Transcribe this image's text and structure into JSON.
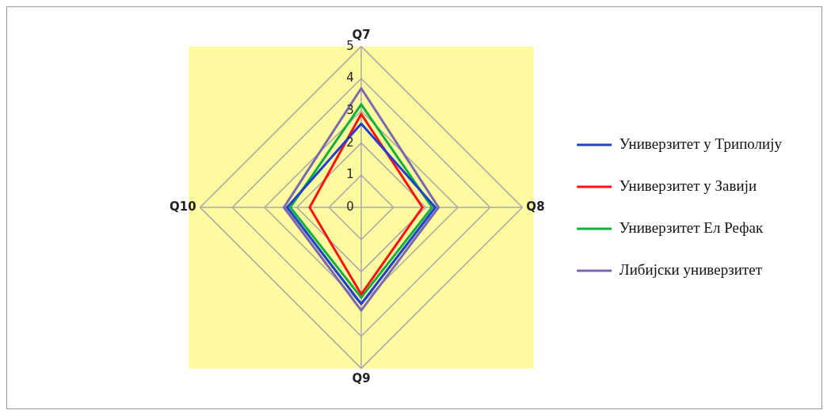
{
  "chart_data": {
    "type": "radar",
    "categories": [
      "Q7",
      "Q8",
      "Q9",
      "Q10"
    ],
    "ylim": [
      0,
      5
    ],
    "yticks": [
      0,
      1,
      2,
      3,
      4,
      5
    ],
    "grid": true,
    "legend": "right",
    "series": [
      {
        "name": "Универзитет у Триполију",
        "color": "#1f3fd0",
        "values": [
          2.6,
          2.3,
          3.0,
          2.3
        ]
      },
      {
        "name": "Универзитет у Завији",
        "color": "#ff1010",
        "values": [
          2.9,
          1.9,
          2.7,
          1.6
        ]
      },
      {
        "name": "Универзитет Ел Рефак",
        "color": "#10b040",
        "values": [
          3.2,
          2.2,
          2.8,
          2.2
        ]
      },
      {
        "name": "Либијски универзитет",
        "color": "#7a68b0",
        "values": [
          3.7,
          2.4,
          3.2,
          2.4
        ]
      }
    ]
  }
}
